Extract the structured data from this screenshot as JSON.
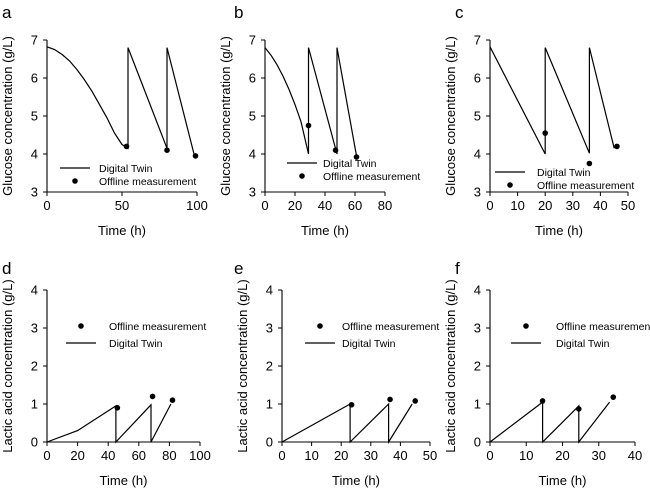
{
  "chart_data": [
    {
      "panel": "a",
      "type": "line",
      "xlabel": "Time (h)",
      "ylabel": "Glucose concentration (g/L)",
      "xlim": [
        0,
        100
      ],
      "ylim": [
        3,
        7
      ],
      "xticks": [
        "0",
        "50",
        "100"
      ],
      "yticks": [
        "3",
        "4",
        "5",
        "6",
        "7"
      ],
      "legend": [
        "Digital Twin",
        "Offline measurement"
      ],
      "legend_position": "lower-right",
      "series": [
        {
          "name": "Digital Twin",
          "type": "line",
          "x": [
            0,
            5,
            10,
            15,
            20,
            25,
            30,
            35,
            40,
            45,
            50,
            54,
            54,
            80,
            80,
            98
          ],
          "y": [
            6.82,
            6.75,
            6.62,
            6.45,
            6.22,
            5.95,
            5.65,
            5.3,
            4.95,
            4.55,
            4.25,
            4.15,
            6.8,
            4.15,
            6.8,
            4.0
          ]
        },
        {
          "name": "Offline measurement",
          "type": "scatter",
          "x": [
            53,
            80,
            99
          ],
          "y": [
            4.2,
            4.1,
            3.95
          ]
        }
      ]
    },
    {
      "panel": "b",
      "type": "line",
      "xlabel": "Time (h)",
      "ylabel": "Glucose concentration (g/L)",
      "xlim": [
        0,
        80
      ],
      "ylim": [
        3,
        7
      ],
      "xticks": [
        "0",
        "20",
        "40",
        "60",
        "80"
      ],
      "yticks": [
        "3",
        "4",
        "5",
        "6",
        "7"
      ],
      "legend": [
        "Digital Twin",
        "Offline measurement"
      ],
      "legend_position": "lower-right",
      "series": [
        {
          "name": "Digital Twin",
          "type": "line",
          "x": [
            0,
            4,
            8,
            12,
            16,
            20,
            24,
            29,
            29,
            48,
            48,
            61
          ],
          "y": [
            6.8,
            6.6,
            6.35,
            6.05,
            5.7,
            5.3,
            4.85,
            4.0,
            6.8,
            4.0,
            6.8,
            3.95
          ]
        },
        {
          "name": "Offline measurement",
          "type": "scatter",
          "x": [
            29,
            47,
            61
          ],
          "y": [
            4.75,
            4.1,
            3.92
          ]
        }
      ]
    },
    {
      "panel": "c",
      "type": "line",
      "xlabel": "Time (h)",
      "ylabel": "Glucose concentration (g/L)",
      "xlim": [
        0,
        50
      ],
      "ylim": [
        3,
        7
      ],
      "xticks": [
        "0",
        "10",
        "20",
        "30",
        "40",
        "50"
      ],
      "yticks": [
        "3",
        "4",
        "5",
        "6",
        "7"
      ],
      "legend": [
        "Digital Twin",
        "Offline measurement"
      ],
      "legend_position": "lower-right",
      "series": [
        {
          "name": "Digital Twin",
          "type": "line",
          "x": [
            0,
            20,
            20,
            36,
            36,
            45
          ],
          "y": [
            6.82,
            4.0,
            6.8,
            4.02,
            6.8,
            4.15
          ]
        },
        {
          "name": "Offline measurement",
          "type": "scatter",
          "x": [
            20,
            36,
            46
          ],
          "y": [
            4.55,
            3.75,
            4.2
          ]
        }
      ]
    },
    {
      "panel": "d",
      "type": "line",
      "xlabel": "Time (h)",
      "ylabel": "Lactic acid concentration (g/L)",
      "xlim": [
        0,
        100
      ],
      "ylim": [
        0,
        4
      ],
      "xticks": [
        "0",
        "20",
        "40",
        "60",
        "80",
        "100"
      ],
      "yticks": [
        "0",
        "1",
        "2",
        "3",
        "4"
      ],
      "legend": [
        "Offline measurement",
        "Digital Twin"
      ],
      "legend_position": "upper-right",
      "series": [
        {
          "name": "Digital Twin",
          "type": "line",
          "x": [
            0,
            20,
            45,
            45,
            68,
            68,
            81
          ],
          "y": [
            0,
            0.3,
            0.95,
            0,
            0.98,
            0,
            1.0
          ]
        },
        {
          "name": "Offline measurement",
          "type": "scatter",
          "x": [
            46,
            69,
            82
          ],
          "y": [
            0.9,
            1.2,
            1.1
          ]
        }
      ]
    },
    {
      "panel": "e",
      "type": "line",
      "xlabel": "Time (h)",
      "ylabel": "Lactic acid concentration (g/L)",
      "xlim": [
        0,
        50
      ],
      "ylim": [
        0,
        4
      ],
      "xticks": [
        "0",
        "10",
        "20",
        "30",
        "40",
        "50"
      ],
      "yticks": [
        "0",
        "1",
        "2",
        "3",
        "4"
      ],
      "legend": [
        "Offline measurement",
        "Digital Twin"
      ],
      "legend_position": "upper-right",
      "series": [
        {
          "name": "Digital Twin",
          "type": "line",
          "x": [
            0,
            23,
            23,
            36,
            36,
            44
          ],
          "y": [
            0,
            1.0,
            0,
            1.0,
            0,
            1.0
          ]
        },
        {
          "name": "Offline measurement",
          "type": "scatter",
          "x": [
            23.5,
            36.5,
            45
          ],
          "y": [
            0.98,
            1.12,
            1.08
          ]
        }
      ]
    },
    {
      "panel": "f",
      "type": "line",
      "xlabel": "Time (h)",
      "ylabel": "Lactic acid concentration (g/L)",
      "xlim": [
        0,
        40
      ],
      "ylim": [
        0,
        4
      ],
      "xticks": [
        "0",
        "10",
        "20",
        "30",
        "40"
      ],
      "yticks": [
        "0",
        "1",
        "2",
        "3",
        "4"
      ],
      "legend": [
        "Offline measurement",
        "Digital Twin"
      ],
      "legend_position": "upper-right",
      "series": [
        {
          "name": "Digital Twin",
          "type": "line",
          "x": [
            0,
            14.5,
            14.5,
            24.5,
            24.5,
            33
          ],
          "y": [
            0,
            1.05,
            0,
            0.95,
            0,
            1.05
          ]
        },
        {
          "name": "Offline measurement",
          "type": "scatter",
          "x": [
            14.5,
            24.5,
            34
          ],
          "y": [
            1.08,
            0.87,
            1.18
          ]
        }
      ]
    }
  ]
}
